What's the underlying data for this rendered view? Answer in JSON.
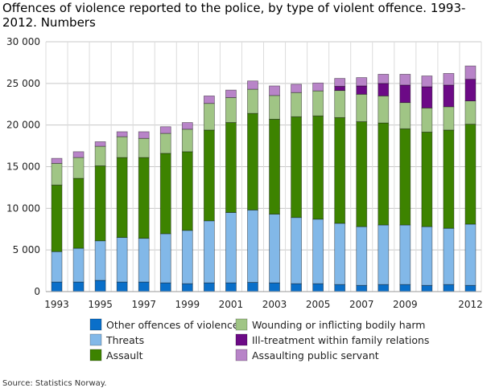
{
  "chart_data": {
    "type": "bar",
    "stacked": true,
    "title": "Offences of violence reported to the police, by type of violent offence. 1993-2012.  Numbers",
    "source": "Source: Statistics Norway.",
    "categories": [
      "1993",
      "1994",
      "1995",
      "1996",
      "1997",
      "1998",
      "1999",
      "2000",
      "2001",
      "2002",
      "2003",
      "2004",
      "2005",
      "2006",
      "2007",
      "2008",
      "2009",
      "2010",
      "2011",
      "2012"
    ],
    "x_tick_labels": [
      "1993",
      "1995",
      "1997",
      "1999",
      "2001",
      "2003",
      "2005",
      "2007",
      "2009",
      "2012"
    ],
    "y_tick_labels": [
      "0",
      "5 000",
      "10 000",
      "15 000",
      "20 000",
      "25 000",
      "30 000"
    ],
    "ylim": [
      0,
      30000
    ],
    "grid": true,
    "legend_position": "bottom",
    "series": [
      {
        "name": "Other offences of violence",
        "color": "#0a6fc9",
        "values": [
          1150,
          1150,
          1350,
          1150,
          1150,
          1050,
          950,
          1050,
          1050,
          1100,
          1050,
          950,
          950,
          850,
          750,
          850,
          850,
          750,
          850,
          750
        ]
      },
      {
        "name": "Threats",
        "color": "#82b8e8",
        "values": [
          3650,
          4050,
          4750,
          5350,
          5250,
          5900,
          6400,
          7450,
          8450,
          8700,
          8250,
          7950,
          7750,
          7350,
          7050,
          7150,
          7150,
          7050,
          6750,
          7350
        ]
      },
      {
        "name": "Assault",
        "color": "#3d8300",
        "values": [
          8000,
          8400,
          9000,
          9600,
          9700,
          9650,
          9450,
          10900,
          10800,
          11600,
          11400,
          12100,
          12400,
          12700,
          12600,
          12250,
          11550,
          11350,
          11800,
          12000
        ]
      },
      {
        "name": "Wounding or inflicting bodily harm",
        "color": "#a0c585",
        "values": [
          2600,
          2500,
          2350,
          2500,
          2300,
          2400,
          2700,
          3200,
          3000,
          2900,
          2850,
          2900,
          3000,
          3250,
          3300,
          3250,
          3150,
          2900,
          2800,
          2800
        ]
      },
      {
        "name": "Ill-treatment within family relations",
        "color": "#6c0a86",
        "values": [
          0,
          0,
          0,
          0,
          0,
          0,
          0,
          0,
          0,
          0,
          0,
          0,
          0,
          500,
          1000,
          1500,
          2100,
          2550,
          2600,
          2600
        ]
      },
      {
        "name": "Assaulting public servant",
        "color": "#b884c8",
        "values": [
          600,
          700,
          550,
          600,
          800,
          800,
          800,
          900,
          900,
          1000,
          1150,
          1000,
          950,
          950,
          1000,
          1100,
          1300,
          1300,
          1400,
          1600
        ]
      }
    ]
  }
}
